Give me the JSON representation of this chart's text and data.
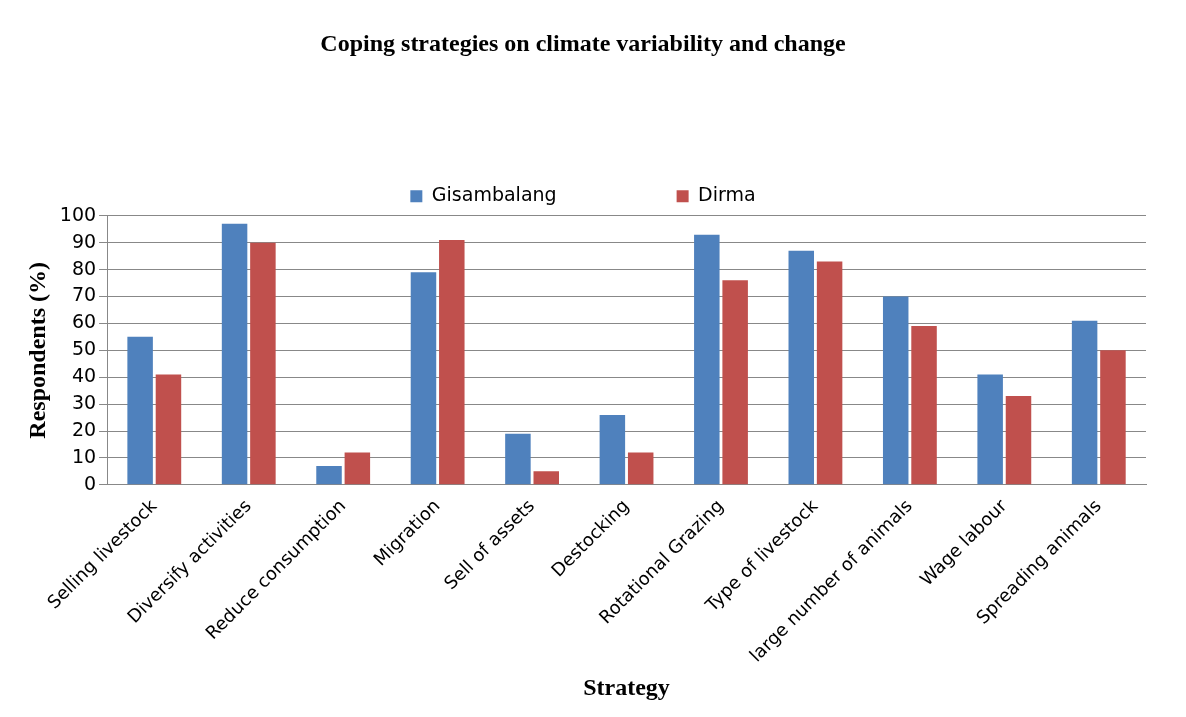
{
  "chart_data": {
    "type": "bar",
    "title": "Coping strategies on climate variability and change",
    "xlabel": "Strategy",
    "ylabel": "Respondents (%)",
    "categories": [
      "Selling livestock",
      "Diversify activities",
      "Reduce consumption",
      "Migration",
      "Sell of assets",
      "Destocking",
      "Rotational Grazing",
      "Type of livestock",
      "large number of animals",
      "Wage labour",
      "Spreading animals"
    ],
    "series": [
      {
        "name": "Gisambalang",
        "color": "#4f81bd",
        "values": [
          55,
          97,
          7,
          79,
          19,
          26,
          93,
          87,
          70,
          41,
          61
        ]
      },
      {
        "name": "Dirma",
        "color": "#c0504d",
        "values": [
          41,
          90,
          12,
          91,
          5,
          12,
          76,
          83,
          59,
          33,
          50
        ]
      }
    ],
    "ylim": [
      0,
      100
    ],
    "yticks": [
      0,
      10,
      20,
      30,
      40,
      50,
      60,
      70,
      80,
      90,
      100
    ],
    "grid": "y",
    "legend": "top"
  }
}
